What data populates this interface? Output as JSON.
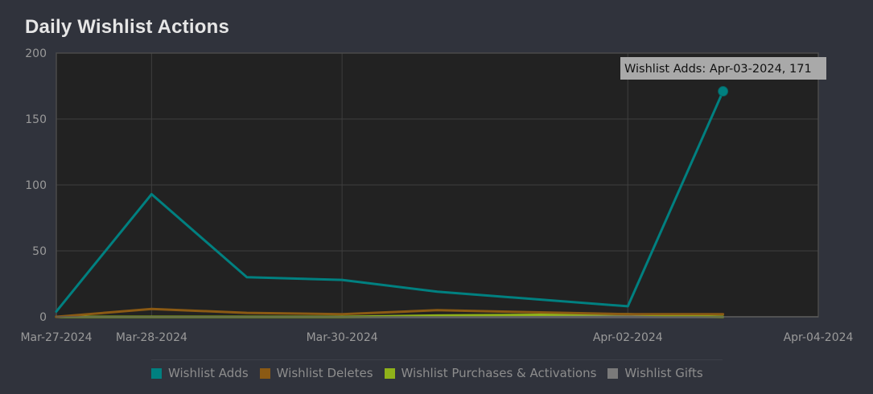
{
  "chart_data": {
    "type": "line",
    "title": "Daily Wishlist Actions",
    "x_ticks": [
      "Mar-27-2024",
      "Mar-28-2024",
      "Mar-30-2024",
      "Apr-02-2024",
      "Apr-04-2024"
    ],
    "y_ticks": [
      "0",
      "50",
      "100",
      "150",
      "200"
    ],
    "ylim": [
      0,
      200
    ],
    "grid": true,
    "legend_position": "bottom",
    "x": [
      "Mar-27-2024",
      "Mar-28-2024",
      "Mar-29-2024",
      "Mar-30-2024",
      "Mar-31-2024",
      "Apr-02-2024",
      "Apr-03-2024"
    ],
    "series": [
      {
        "name": "Wishlist Adds",
        "color": "#008080",
        "values": [
          4,
          93,
          30,
          28,
          19,
          8,
          171
        ]
      },
      {
        "name": "Wishlist Deletes",
        "color": "#8b5a14",
        "values": [
          0,
          6,
          3,
          2,
          5,
          2,
          2
        ]
      },
      {
        "name": "Wishlist Purchases & Activations",
        "color": "#8fb21a",
        "values": [
          0,
          0,
          0,
          0,
          1,
          2,
          0
        ]
      },
      {
        "name": "Wishlist Gifts",
        "color": "#7a7a7a",
        "values": [
          0,
          0,
          0,
          0,
          0,
          0,
          0
        ]
      }
    ],
    "tooltip": "Wishlist Adds: Apr-03-2024, 171"
  }
}
